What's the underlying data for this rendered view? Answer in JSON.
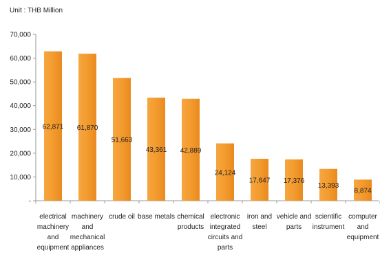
{
  "unit_label": "Unit : THB Million",
  "chart_data": {
    "type": "bar",
    "title": "",
    "xlabel": "",
    "ylabel": "",
    "ylim": [
      0,
      70000
    ],
    "yticks": [
      0,
      10000,
      20000,
      30000,
      40000,
      50000,
      60000,
      70000
    ],
    "ytick_labels": [
      "-",
      "10,000",
      "20,000",
      "30,000",
      "40,000",
      "50,000",
      "60,000",
      "70,000"
    ],
    "categories": [
      "electrical machinery and equipment",
      "machinery and mechanical appliances",
      "crude oil",
      "base metals",
      "chemical products",
      "electronic integrated circuits and parts",
      "iron and steel",
      "vehicle and parts",
      "scientific instrument",
      "computer and equipment"
    ],
    "values": [
      62871,
      61870,
      51663,
      43361,
      42889,
      24124,
      17647,
      17376,
      13393,
      8874
    ],
    "value_labels": [
      "62,871",
      "61,870",
      "51,663",
      "43,361",
      "42,889",
      "24,124",
      "17,647",
      "17,376",
      "13,393",
      "8,874"
    ],
    "bar_color": "#f39b2e",
    "grid": false,
    "legend": "none"
  }
}
